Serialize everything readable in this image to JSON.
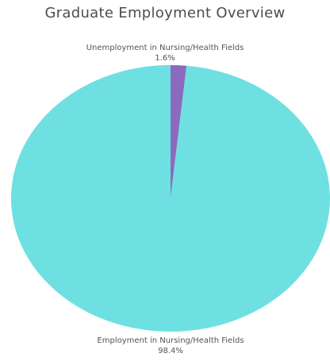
{
  "chart_data": {
    "type": "pie",
    "title": "Graduate Employment Overview",
    "slices": [
      {
        "label": "Employment in Nursing/Health Fields",
        "value": 98.4,
        "value_label": "98.4%",
        "color": "#6fe0e2"
      },
      {
        "label": "Unemployment in Nursing/Health Fields",
        "value": 1.6,
        "value_label": "1.6%",
        "color": "#8a6bc0"
      }
    ],
    "legend": "none"
  }
}
